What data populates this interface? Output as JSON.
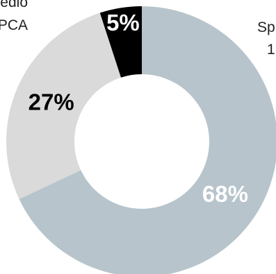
{
  "chart_data": {
    "type": "pie",
    "style": "donut",
    "slices": [
      {
        "label": "Sp",
        "label_line2": "1",
        "value": 68,
        "value_label": "68%",
        "color": "#b7c4cb",
        "text_color": "#ffffff"
      },
      {
        "label": "edio",
        "label_line2": "PCA",
        "value": 27,
        "value_label": "27%",
        "color": "#dadada",
        "text_color": "#000000"
      },
      {
        "label": "",
        "label_line2": "",
        "value": 5,
        "value_label": "5%",
        "color": "#000000",
        "text_color": "#ffffff"
      }
    ]
  }
}
